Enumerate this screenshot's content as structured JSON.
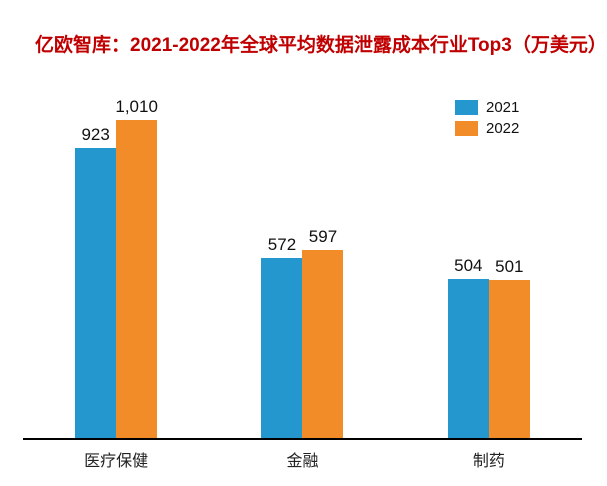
{
  "title": "亿欧智库：2021-2022年全球平均数据泄露成本行业Top3（万美元）",
  "title_color": "#C00000",
  "axis_line_color": "#000000",
  "value_label_color": "#111111",
  "chart_data": {
    "type": "bar",
    "title": "亿欧智库：2021-2022年全球平均数据泄露成本行业Top3（万美元）",
    "categories": [
      "医疗保健",
      "金融",
      "制药"
    ],
    "series": [
      {
        "name": "2021",
        "color": "#2498CE",
        "values": [
          923,
          572,
          504
        ],
        "value_labels": [
          "923",
          "572",
          "504"
        ]
      },
      {
        "name": "2022",
        "color": "#F28C28",
        "values": [
          1010,
          597,
          501
        ],
        "value_labels": [
          "1,010",
          "597",
          "501"
        ]
      }
    ],
    "xlabel": "",
    "ylabel": "",
    "ylim": [
      0,
      1100
    ],
    "grid": false,
    "y_axis_visible": false,
    "legend_position": "top-right"
  }
}
